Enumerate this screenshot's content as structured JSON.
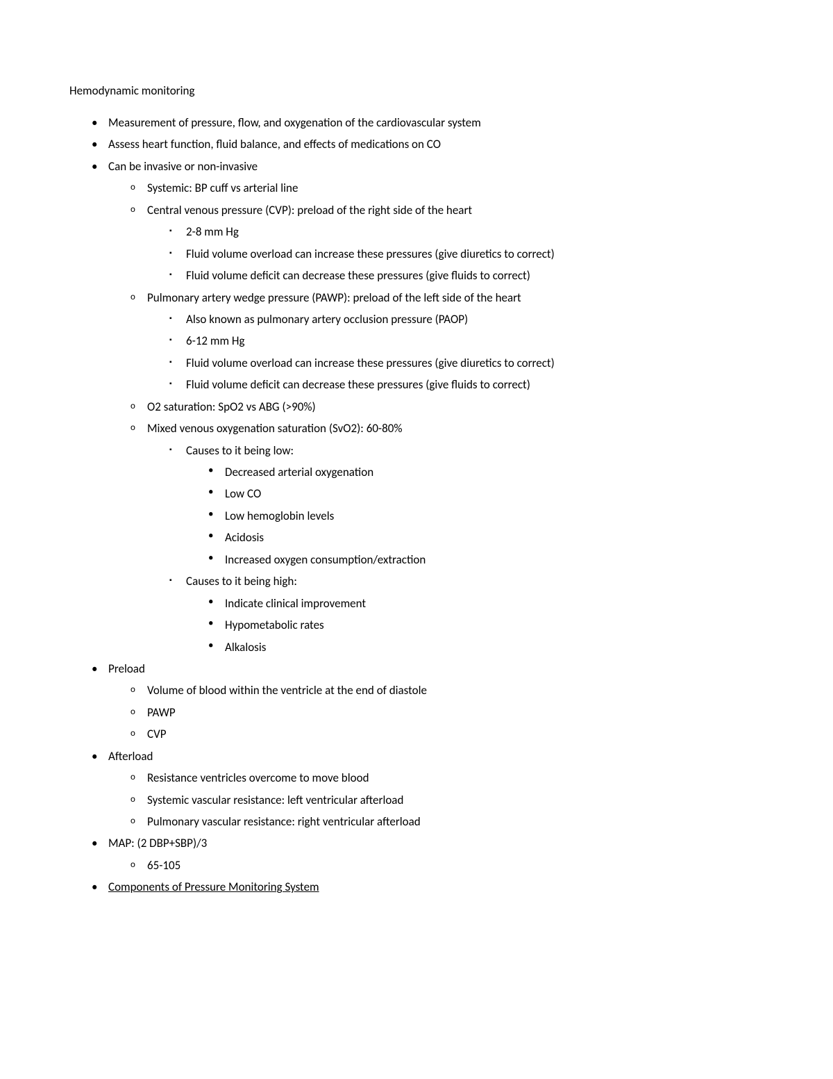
{
  "doc": {
    "title": "Hemodynamic monitoring",
    "items": [
      {
        "text": "Measurement of pressure, flow, and oxygenation of the cardiovascular system"
      },
      {
        "text": "Assess heart function, fluid balance, and effects of medications on CO"
      },
      {
        "text": "Can be invasive or non-invasive",
        "children": [
          {
            "text": "Systemic: BP cuff vs arterial line"
          },
          {
            "text": "Central venous pressure (CVP): preload of the right side of the heart",
            "children": [
              {
                "text": "2-8 mm Hg"
              },
              {
                "text": "Fluid volume overload can increase these pressures (give diuretics to correct)"
              },
              {
                "text": "Fluid volume deficit can decrease these pressures (give fluids to correct)"
              }
            ]
          },
          {
            "text": "Pulmonary artery wedge pressure (PAWP): preload of the left side of the heart",
            "children": [
              {
                "text": "Also known as pulmonary artery occlusion pressure (PAOP)"
              },
              {
                "text": "6-12 mm Hg"
              },
              {
                "text": "Fluid volume overload can increase these pressures (give diuretics to correct)"
              },
              {
                "text": "Fluid volume deficit can decrease these pressures (give fluids to correct)"
              }
            ]
          },
          {
            "text": "O2 saturation: SpO2 vs ABG (>90%)"
          },
          {
            "text": "Mixed venous oxygenation saturation (SvO2): 60-80%",
            "children": [
              {
                "text": "Causes to it being low:",
                "children": [
                  {
                    "text": "Decreased arterial oxygenation"
                  },
                  {
                    "text": "Low CO"
                  },
                  {
                    "text": "Low hemoglobin levels"
                  },
                  {
                    "text": "Acidosis"
                  },
                  {
                    "text": "Increased oxygen consumption/extraction"
                  }
                ]
              },
              {
                "text": "Causes to it being high:",
                "children": [
                  {
                    "text": "Indicate clinical improvement"
                  },
                  {
                    "text": "Hypometabolic rates"
                  },
                  {
                    "text": "Alkalosis"
                  }
                ]
              }
            ]
          }
        ]
      },
      {
        "text": "Preload",
        "children": [
          {
            "text": "Volume of blood within the ventricle at the end of diastole"
          },
          {
            "text": "PAWP"
          },
          {
            "text": "CVP"
          }
        ]
      },
      {
        "text": "Afterload",
        "children": [
          {
            "text": "Resistance ventricles overcome to move blood"
          },
          {
            "text": "Systemic vascular resistance: left ventricular afterload"
          },
          {
            "text": "Pulmonary vascular resistance: right ventricular afterload"
          }
        ]
      },
      {
        "text": "MAP: (2 DBP+SBP)/3",
        "children": [
          {
            "text": "65-105"
          }
        ]
      },
      {
        "text": "Components of Pressure Monitoring System",
        "underline": true
      }
    ]
  },
  "style": {
    "text_color": "#000000",
    "background_color": "#ffffff",
    "font_size_pt": 11
  }
}
